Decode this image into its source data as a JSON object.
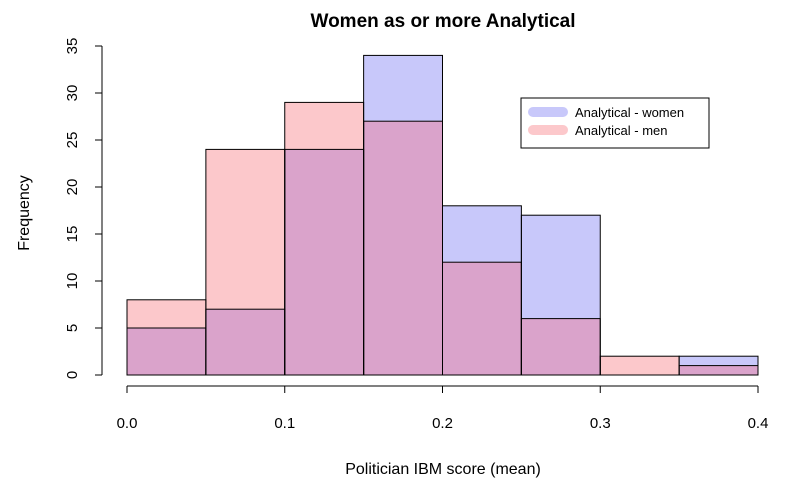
{
  "chart_data": {
    "type": "bar",
    "title": "Women as or more Analytical",
    "xlabel": "Politician IBM score (mean)",
    "ylabel": "Frequency",
    "bin_edges": [
      0.0,
      0.05,
      0.1,
      0.15,
      0.2,
      0.25,
      0.3,
      0.35,
      0.4
    ],
    "xlim": [
      0.0,
      0.4
    ],
    "ylim": [
      0,
      35
    ],
    "x_ticks": [
      "0.0",
      "0.1",
      "0.2",
      "0.3",
      "0.4"
    ],
    "x_tick_values": [
      0.0,
      0.1,
      0.2,
      0.3,
      0.4
    ],
    "y_ticks": [
      "0",
      "5",
      "10",
      "15",
      "20",
      "25",
      "30",
      "35"
    ],
    "y_tick_values": [
      0,
      5,
      10,
      15,
      20,
      25,
      30,
      35
    ],
    "series": [
      {
        "name": "Analytical - women",
        "color": "#c8c8fa",
        "values": [
          5,
          7,
          24,
          34,
          18,
          17,
          0,
          2
        ]
      },
      {
        "name": "Analytical - men",
        "color": "#fcc8cb",
        "values": [
          8,
          24,
          29,
          27,
          12,
          6,
          2,
          1
        ]
      }
    ],
    "overlap_color": "#daa3cb",
    "legend_position": "top-right",
    "grid": false
  }
}
